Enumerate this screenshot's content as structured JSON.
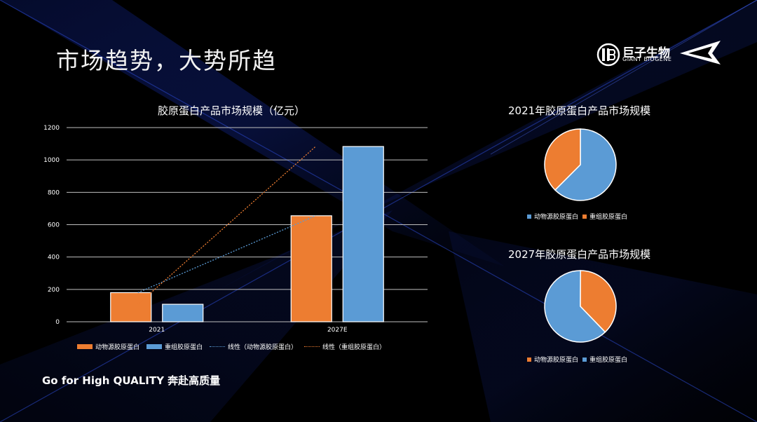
{
  "slide": {
    "title": "市场趋势，大势所趋",
    "slogan": "Go for High QUALITY 奔赴高质量"
  },
  "logo": {
    "cn": "巨子生物",
    "en": "GIANT BIOGENE"
  },
  "colors": {
    "orange": "#ED7D31",
    "blue": "#5B9BD5",
    "accent_light": "#2040c0"
  },
  "bar_chart": {
    "legend": {
      "animal": "动物源胶原蛋白",
      "recombinant": "重组胶原蛋白",
      "trend_animal": "线性（动物源胶原蛋白）",
      "trend_recombinant": "线性（重组胶原蛋白）"
    }
  },
  "pie_2021": {
    "legend_animal": "动物源胶原蛋白",
    "legend_recombinant": "重组胶原蛋白"
  },
  "pie_2027": {
    "legend_animal": "动物源胶原蛋白",
    "legend_recombinant": "重组胶原蛋白"
  },
  "chart_data": [
    {
      "type": "bar",
      "title": "胶原蛋白产品市场规模（亿元）",
      "categories": [
        "2021",
        "2027E"
      ],
      "series": [
        {
          "name": "动物源胶原蛋白",
          "values": [
            180,
            655
          ]
        },
        {
          "name": "重组胶原蛋白",
          "values": [
            108,
            1083
          ]
        }
      ],
      "trendlines": [
        {
          "name": "线性（动物源胶原蛋白）",
          "series": "动物源胶原蛋白",
          "style": "dotted"
        },
        {
          "name": "线性（重组胶原蛋白）",
          "series": "重组胶原蛋白",
          "style": "dotted"
        }
      ],
      "ylim": [
        0,
        1200
      ],
      "yticks": [
        "0",
        "200",
        "400",
        "600",
        "800",
        "1000",
        "1200"
      ],
      "grid": true,
      "legend": "bottom"
    },
    {
      "type": "pie",
      "title": "2021年胶原蛋白产品市场规模",
      "labels": [
        "动物源胶原蛋白",
        "重组胶原蛋白"
      ],
      "values": [
        62.5,
        37.5
      ],
      "legend": "bottom"
    },
    {
      "type": "pie",
      "title": "2027年胶原蛋白产品市场规模",
      "labels": [
        "重组胶原蛋白",
        "动物源胶原蛋白"
      ],
      "values": [
        62.3,
        37.7
      ],
      "legend": "bottom"
    }
  ]
}
